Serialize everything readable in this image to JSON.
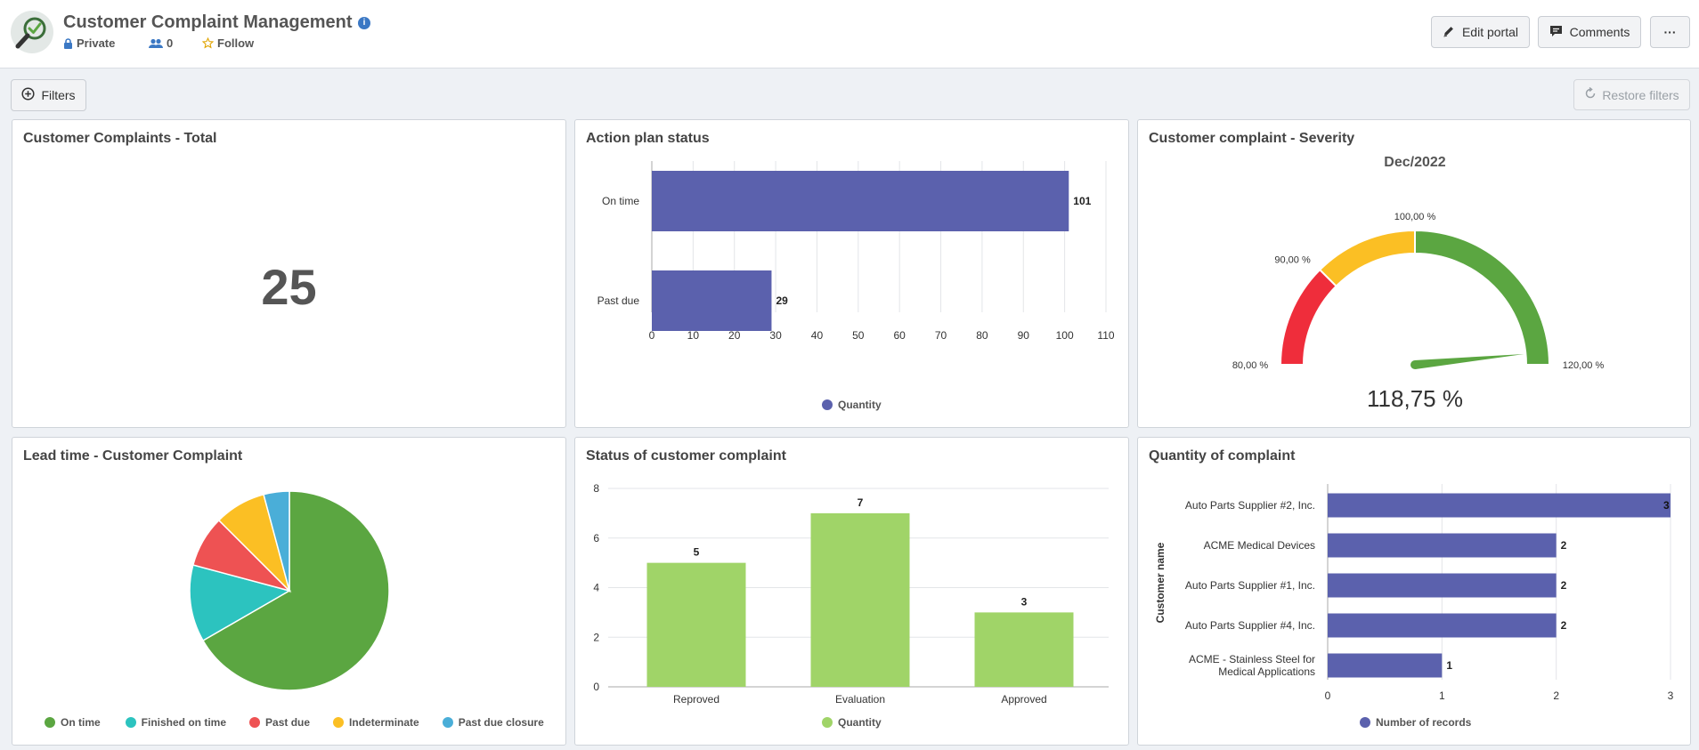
{
  "header": {
    "title": "Customer Complaint Management",
    "info_icon": "i",
    "privacy": "Private",
    "members": "0",
    "follow": "Follow",
    "edit_portal": "Edit portal",
    "comments": "Comments",
    "more": "···"
  },
  "toolbar": {
    "filters": "Filters",
    "restore": "Restore filters"
  },
  "colors": {
    "bar": "#5b61ad",
    "green": "#5ba641",
    "light_green": "#a0d468",
    "teal": "#2cc3bf",
    "red": "#ee5253",
    "yellow": "#fbbf24",
    "blue": "#4aaed8",
    "gauge_red": "#ef2d3b"
  },
  "card_total": {
    "title": "Customer Complaints - Total",
    "value": "25"
  },
  "card_gauge": {
    "title": "Customer complaint - Severity",
    "subtitle": "Dec/2022",
    "value_text": "118,75 %",
    "labels": [
      "80,00 %",
      "90,00 %",
      "100,00 %",
      "120,00 %"
    ]
  },
  "chart_data": [
    {
      "id": "action_plan",
      "type": "bar",
      "orientation": "horizontal",
      "title": "Action plan status",
      "categories": [
        "On time",
        "Past due"
      ],
      "series": [
        {
          "name": "Quantity",
          "values": [
            101,
            29
          ]
        }
      ],
      "xlim": [
        0,
        110
      ],
      "ticks": [
        "0",
        "10",
        "20",
        "30",
        "40",
        "50",
        "60",
        "70",
        "80",
        "90",
        "100",
        "110"
      ],
      "tick_values": [
        0,
        10,
        20,
        30,
        40,
        50,
        60,
        70,
        80,
        90,
        100,
        110
      ],
      "grid": true,
      "legend": "bottom"
    },
    {
      "id": "lead_time",
      "type": "pie",
      "title": "Lead time - Customer Complaint",
      "categories": [
        "On time",
        "Finished on time",
        "Past due",
        "Indeterminate",
        "Past due closure"
      ],
      "values": [
        16,
        3,
        2,
        2,
        1
      ],
      "legend": "bottom"
    },
    {
      "id": "status",
      "type": "bar",
      "orientation": "vertical",
      "title": "Status of customer complaint",
      "categories": [
        "Reproved",
        "Evaluation",
        "Approved"
      ],
      "series": [
        {
          "name": "Quantity",
          "values": [
            5,
            7,
            3
          ]
        }
      ],
      "ylim": [
        0,
        8
      ],
      "ticks": [
        "0",
        "2",
        "4",
        "6",
        "8"
      ],
      "tick_values": [
        0,
        2,
        4,
        6,
        8
      ],
      "grid": true,
      "legend": "bottom"
    },
    {
      "id": "quantity",
      "type": "bar",
      "orientation": "horizontal",
      "title": "Quantity of complaint",
      "categories": [
        "Auto Parts Supplier #2, Inc.",
        "ACME Medical Devices",
        "Auto Parts Supplier #1, Inc.",
        "Auto Parts Supplier #4, Inc.",
        "ACME - Stainless Steel for Medical Applications"
      ],
      "category_lines": [
        [
          "Auto Parts Supplier #2, Inc."
        ],
        [
          "ACME Medical Devices"
        ],
        [
          "Auto Parts Supplier #1, Inc."
        ],
        [
          "Auto Parts Supplier #4, Inc."
        ],
        [
          "ACME - Stainless Steel for",
          "Medical Applications"
        ]
      ],
      "series": [
        {
          "name": "Number of records",
          "values": [
            3,
            2,
            2,
            2,
            1
          ]
        }
      ],
      "ylabel": "Customer name",
      "xlim": [
        0,
        3
      ],
      "ticks": [
        "0",
        "1",
        "2",
        "3"
      ],
      "tick_values": [
        0,
        1,
        2,
        3
      ],
      "grid": true,
      "legend": "bottom"
    },
    {
      "id": "severity",
      "type": "gauge",
      "title": "Customer complaint - Severity",
      "range": [
        80,
        120
      ],
      "bands": [
        [
          80,
          90,
          "red"
        ],
        [
          90,
          100,
          "yellow"
        ],
        [
          100,
          120,
          "green"
        ]
      ],
      "value": 118.75
    }
  ]
}
